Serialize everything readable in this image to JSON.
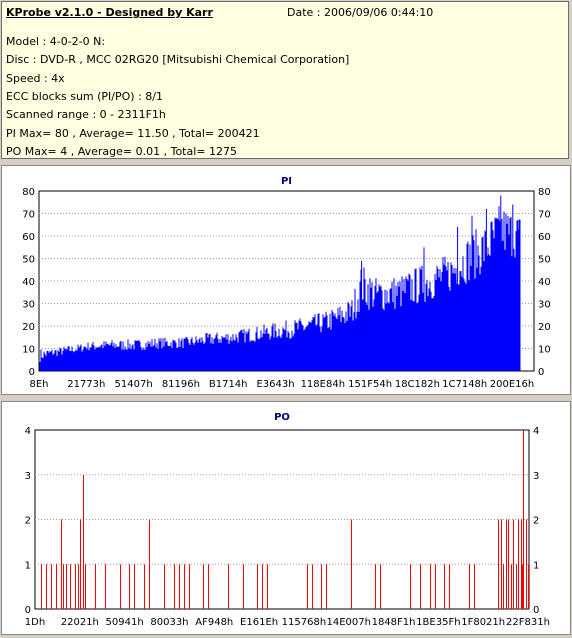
{
  "info": {
    "title": "KProbe v2.1.0 - Designed by Karr",
    "date": "Date : 2006/09/06 0:44:10",
    "lines": [
      "Model : 4-0-2-0 N:",
      "Disc : DVD-R , MCC 02RG20   [Mitsubishi Chemical Corporation]",
      "Speed : 4x",
      "ECC blocks sum (PI/PO) : 8/1",
      "Scanned range : 0 - 2311F1h",
      "PI Max= 80 , Average= 11.50 , Total= 200421",
      "PO Max= 4 , Average= 0.01 , Total= 1275"
    ]
  },
  "chart_data": [
    {
      "type": "bar",
      "title": "PI",
      "ylim": [
        0,
        80
      ],
      "yticks": [
        "0",
        "10",
        "20",
        "30",
        "40",
        "50",
        "60",
        "70",
        "80"
      ],
      "xtick_labels": [
        "8Eh",
        "21773h",
        "51407h",
        "81196h",
        "B1714h",
        "E3643h",
        "118E84h",
        "151F54h",
        "18C182h",
        "1C7148h",
        "200E16h"
      ],
      "color": "#0000ff",
      "envelope": [
        [
          0,
          10,
          4
        ],
        [
          0.02,
          10,
          6
        ],
        [
          0.05,
          11,
          7
        ],
        [
          0.08,
          12,
          8
        ],
        [
          0.1,
          13,
          9
        ],
        [
          0.15,
          14,
          9
        ],
        [
          0.2,
          14,
          9
        ],
        [
          0.25,
          15,
          10
        ],
        [
          0.3,
          15,
          10
        ],
        [
          0.35,
          17,
          11
        ],
        [
          0.4,
          18,
          12
        ],
        [
          0.45,
          20,
          13
        ],
        [
          0.5,
          22,
          14
        ],
        [
          0.55,
          24,
          15
        ],
        [
          0.6,
          27,
          17
        ],
        [
          0.65,
          33,
          20
        ],
        [
          0.67,
          48,
          28
        ],
        [
          0.7,
          42,
          26
        ],
        [
          0.75,
          43,
          27
        ],
        [
          0.8,
          48,
          30
        ],
        [
          0.85,
          52,
          34
        ],
        [
          0.88,
          58,
          38
        ],
        [
          0.9,
          62,
          40
        ],
        [
          0.93,
          66,
          44
        ],
        [
          0.96,
          75,
          50
        ],
        [
          1.0,
          70,
          50
        ]
      ],
      "spikes": [
        [
          0.67,
          49
        ],
        [
          0.8,
          55
        ],
        [
          0.87,
          64
        ],
        [
          0.9,
          69
        ],
        [
          0.93,
          72
        ],
        [
          0.96,
          78
        ],
        [
          0.985,
          74
        ],
        [
          0.995,
          67
        ]
      ],
      "grid": true
    },
    {
      "type": "bar",
      "title": "PO",
      "ylim": [
        0,
        4
      ],
      "yticks": [
        "0",
        "1",
        "2",
        "3",
        "4"
      ],
      "xtick_labels": [
        "1Dh",
        "22021h",
        "50941h",
        "80033h",
        "AF948h",
        "E161Eh",
        "115768h",
        "14E007h",
        "1848F1h",
        "1BE35Fh",
        "1F8021h",
        "22F831h"
      ],
      "color": "#ff0000",
      "events": [
        [
          0.01,
          1
        ],
        [
          0.02,
          1
        ],
        [
          0.03,
          1
        ],
        [
          0.04,
          1
        ],
        [
          0.05,
          2
        ],
        [
          0.055,
          1
        ],
        [
          0.06,
          1
        ],
        [
          0.07,
          1
        ],
        [
          0.08,
          1
        ],
        [
          0.085,
          1
        ],
        [
          0.09,
          2
        ],
        [
          0.095,
          3
        ],
        [
          0.1,
          1
        ],
        [
          0.12,
          1
        ],
        [
          0.14,
          1
        ],
        [
          0.17,
          1
        ],
        [
          0.19,
          1
        ],
        [
          0.2,
          1
        ],
        [
          0.22,
          1
        ],
        [
          0.23,
          2
        ],
        [
          0.26,
          1
        ],
        [
          0.28,
          1
        ],
        [
          0.29,
          1
        ],
        [
          0.3,
          1
        ],
        [
          0.31,
          1
        ],
        [
          0.34,
          1
        ],
        [
          0.35,
          1
        ],
        [
          0.39,
          1
        ],
        [
          0.42,
          1
        ],
        [
          0.45,
          1
        ],
        [
          0.46,
          1
        ],
        [
          0.47,
          1
        ],
        [
          0.55,
          1
        ],
        [
          0.56,
          1
        ],
        [
          0.58,
          1
        ],
        [
          0.59,
          1
        ],
        [
          0.64,
          2
        ],
        [
          0.69,
          1
        ],
        [
          0.7,
          1
        ],
        [
          0.76,
          1
        ],
        [
          0.78,
          1
        ],
        [
          0.8,
          1
        ],
        [
          0.81,
          1
        ],
        [
          0.83,
          1
        ],
        [
          0.84,
          1
        ],
        [
          0.88,
          1
        ],
        [
          0.89,
          1
        ],
        [
          0.94,
          2
        ],
        [
          0.945,
          2
        ],
        [
          0.95,
          1
        ],
        [
          0.955,
          2
        ],
        [
          0.96,
          2
        ],
        [
          0.965,
          1
        ],
        [
          0.97,
          2
        ],
        [
          0.975,
          1
        ],
        [
          0.98,
          2
        ],
        [
          0.985,
          2
        ],
        [
          0.988,
          1
        ],
        [
          0.99,
          4
        ],
        [
          0.995,
          2
        ],
        [
          1.0,
          1
        ]
      ],
      "grid": true
    }
  ]
}
